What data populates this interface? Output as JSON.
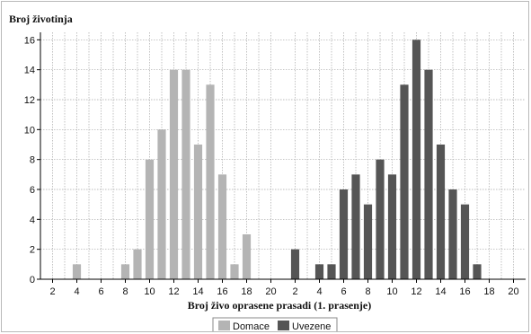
{
  "chart_data": {
    "type": "bar",
    "ylabel": "Broj životinja",
    "xlabel": "Broj živo oprasene prasadi (1. prasenje)",
    "ylim": [
      0,
      16.5
    ],
    "yticks": [
      0,
      2,
      4,
      6,
      8,
      10,
      12,
      14,
      16
    ],
    "xticks": [
      2,
      4,
      6,
      8,
      10,
      12,
      14,
      16,
      18,
      20
    ],
    "grid": true,
    "legend_position": "bottom-center",
    "series": [
      {
        "name": "Domace",
        "color": "#b4b4b4",
        "x": [
          4,
          8,
          9,
          10,
          11,
          12,
          13,
          14,
          15,
          16,
          17,
          18
        ],
        "values": [
          1,
          1,
          2,
          8,
          10,
          14,
          14,
          9,
          13,
          7,
          1,
          3
        ]
      },
      {
        "name": "Uvezene",
        "color": "#555555",
        "x": [
          2,
          4,
          5,
          6,
          7,
          8,
          9,
          10,
          11,
          12,
          13,
          14,
          15,
          16,
          17
        ],
        "values": [
          2,
          1,
          1,
          6,
          7,
          5,
          8,
          7,
          13,
          16,
          14,
          9,
          6,
          5,
          1
        ]
      }
    ]
  }
}
